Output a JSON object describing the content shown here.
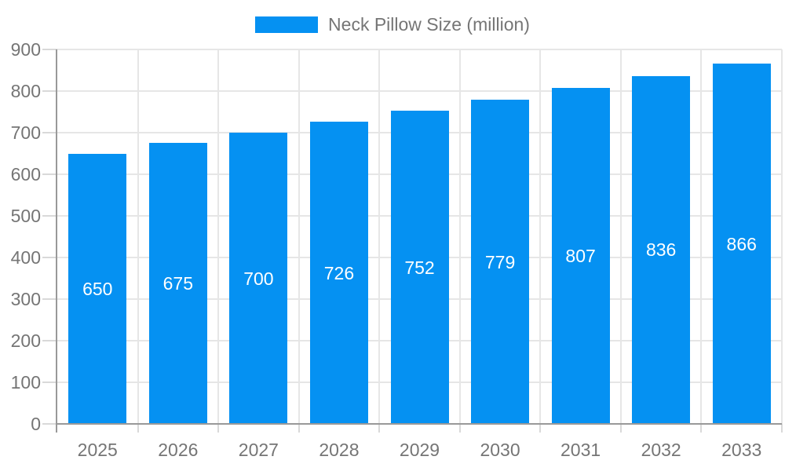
{
  "chart_data": {
    "type": "bar",
    "title": "",
    "legend_label": "Neck Pillow Size (million)",
    "categories": [
      "2025",
      "2026",
      "2027",
      "2028",
      "2029",
      "2030",
      "2031",
      "2032",
      "2033"
    ],
    "series": [
      {
        "name": "Neck Pillow Size (million)",
        "values": [
          650,
          675,
          700,
          726,
          752,
          779,
          807,
          836,
          866
        ]
      }
    ],
    "value_labels": [
      "650",
      "675",
      "700",
      "726",
      "752",
      "779",
      "807",
      "836",
      "866"
    ],
    "xlabel": "",
    "ylabel": "",
    "ylim": [
      0,
      900
    ],
    "ytick_step": 100,
    "ytick_labels": [
      "0",
      "100",
      "200",
      "300",
      "400",
      "500",
      "600",
      "700",
      "800",
      "900"
    ],
    "grid": true,
    "legend_position": "top-center",
    "colors": {
      "bar": "#0591f2",
      "grid": "#e6e6e6",
      "axis": "#999999",
      "tick": "#d9d9d9",
      "label_text": "#757575",
      "value_text": "#ffffff",
      "background": "#ffffff"
    }
  }
}
